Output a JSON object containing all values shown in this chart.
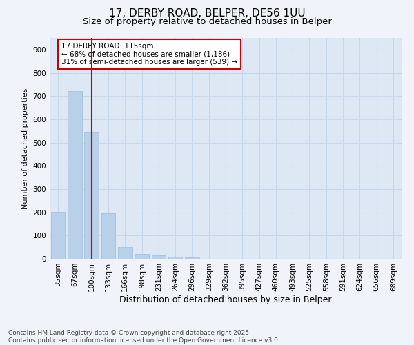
{
  "title": "17, DERBY ROAD, BELPER, DE56 1UU",
  "subtitle": "Size of property relative to detached houses in Belper",
  "xlabel": "Distribution of detached houses by size in Belper",
  "ylabel": "Number of detached properties",
  "categories": [
    "35sqm",
    "67sqm",
    "100sqm",
    "133sqm",
    "166sqm",
    "198sqm",
    "231sqm",
    "264sqm",
    "296sqm",
    "329sqm",
    "362sqm",
    "395sqm",
    "427sqm",
    "460sqm",
    "493sqm",
    "525sqm",
    "558sqm",
    "591sqm",
    "624sqm",
    "656sqm",
    "689sqm"
  ],
  "values": [
    203,
    720,
    543,
    196,
    49,
    20,
    15,
    10,
    5,
    0,
    0,
    0,
    0,
    0,
    0,
    0,
    0,
    0,
    0,
    0,
    0
  ],
  "bar_color": "#b8d0e8",
  "bar_edge_color": "#a0bcd8",
  "vline_x_index": 2,
  "vline_color": "#cc0000",
  "annotation_text": "17 DERBY ROAD: 115sqm\n← 68% of detached houses are smaller (1,186)\n31% of semi-detached houses are larger (539) →",
  "annotation_box_facecolor": "white",
  "annotation_box_edgecolor": "#cc0000",
  "ylim": [
    0,
    950
  ],
  "yticks": [
    0,
    100,
    200,
    300,
    400,
    500,
    600,
    700,
    800,
    900
  ],
  "footer": "Contains HM Land Registry data © Crown copyright and database right 2025.\nContains public sector information licensed under the Open Government Licence v3.0.",
  "fig_bg_color": "#f0f4fa",
  "plot_bg_color": "#dde8f4",
  "grid_color": "#c8d8ec",
  "title_fontsize": 11,
  "subtitle_fontsize": 9.5,
  "ylabel_fontsize": 8,
  "xlabel_fontsize": 9,
  "tick_fontsize": 7.5,
  "annotation_fontsize": 7.5,
  "footer_fontsize": 6.5
}
